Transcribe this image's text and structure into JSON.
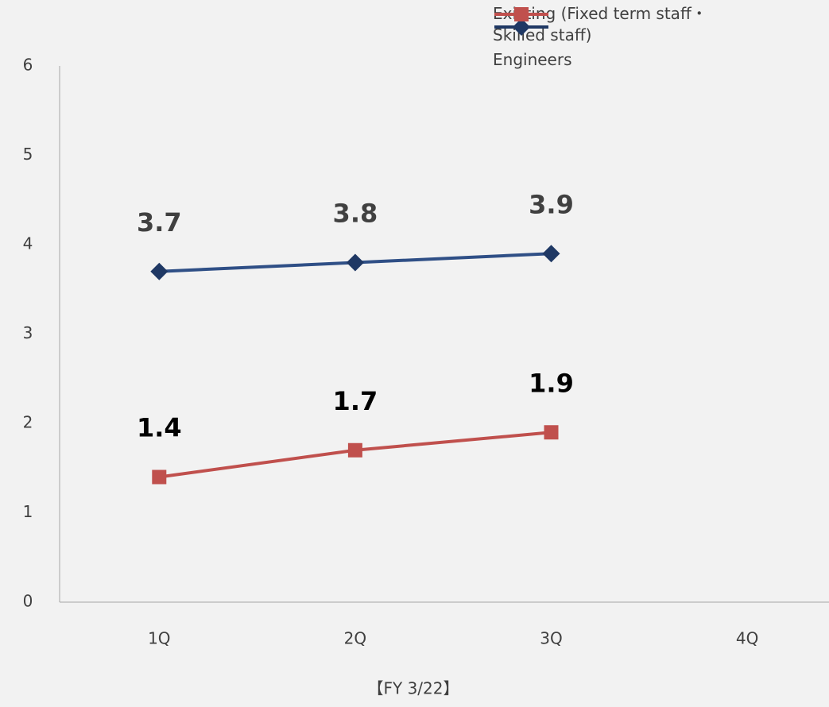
{
  "chart_data": {
    "type": "line",
    "categories": [
      "1Q",
      "2Q",
      "3Q",
      "4Q"
    ],
    "series": [
      {
        "name": "Existing (Fixed term staff・ Skilled staff)",
        "color": "#1f3864",
        "marker": "diamond",
        "values": [
          3.7,
          3.8,
          3.9,
          null
        ]
      },
      {
        "name": "Engineers",
        "color": "#c0504d",
        "marker": "square",
        "values": [
          1.4,
          1.7,
          1.9,
          null
        ]
      }
    ],
    "xlabel": "【FY 3/22】",
    "ylim": [
      0,
      6
    ],
    "yticks": [
      0,
      1,
      2,
      3,
      4,
      5,
      6
    ],
    "grid": false,
    "legend": "top-right"
  }
}
